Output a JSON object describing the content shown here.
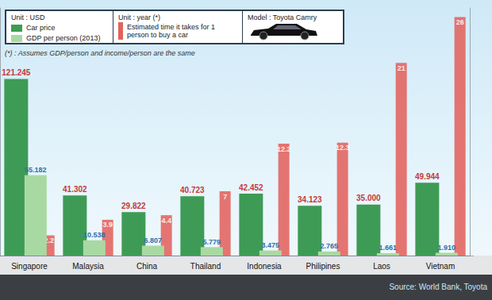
{
  "chart_data": {
    "type": "bar",
    "title": "Model : Toyota Camry",
    "annotations": [
      "Unit : USD",
      "Unit : year (*)",
      "(*) : Assumes GDP/person and income/person are the same",
      "Source: World Bank, Toyota"
    ],
    "categories": [
      "Singapore",
      "Malaysia",
      "China",
      "Thailand",
      "Indonesia",
      "Philipines",
      "Laos",
      "Vietnam"
    ],
    "series": [
      {
        "name": "Car price",
        "color": "#3e9b55",
        "values": [
          121245,
          41302,
          29822,
          40723,
          42452,
          34123,
          35000,
          49944
        ],
        "value_labels": [
          "121.245",
          "41.302",
          "29.822",
          "40.723",
          "42.452",
          "34.123",
          "35.000",
          "49.944"
        ]
      },
      {
        "name": "GDP per person (2013)",
        "color": "#a9d9a3",
        "values": [
          55182,
          10538,
          6807,
          5779,
          3475,
          2765,
          1661,
          1910
        ],
        "value_labels": [
          "55.182",
          "10.538",
          "6.807",
          "5.779",
          "3.475",
          "2.765",
          "1.661",
          "1.910"
        ]
      },
      {
        "name": "Estimated time it takes for 1 person to buy a car",
        "color": "#e2625d",
        "axis": "y2",
        "values": [
          2.2,
          3.9,
          4.4,
          7,
          12.2,
          12.3,
          21,
          26
        ]
      }
    ],
    "ylim": [
      0,
      170000
    ],
    "yticks": [
      0
    ],
    "y2lim": [
      0,
      27
    ],
    "y2ticks": [
      0
    ],
    "grid": false,
    "data_labels": true,
    "tick_labels": "x",
    "legend": "top-left"
  }
}
